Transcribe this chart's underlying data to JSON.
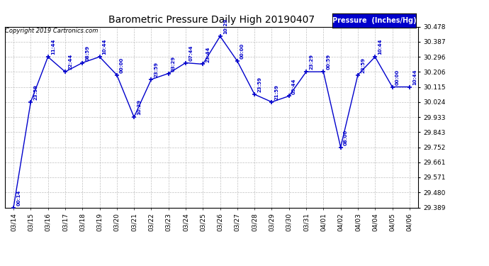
{
  "title": "Barometric Pressure Daily High 20190407",
  "copyright": "Copyright 2019 Cartronics.com",
  "legend_label": "Pressure  (Inches/Hg)",
  "line_color": "#0000cc",
  "background_color": "#ffffff",
  "grid_color": "#b0b0b0",
  "x_labels": [
    "03/14",
    "03/15",
    "03/16",
    "03/17",
    "03/18",
    "03/19",
    "03/20",
    "03/21",
    "03/22",
    "03/23",
    "03/24",
    "03/25",
    "03/26",
    "03/27",
    "03/28",
    "03/29",
    "03/30",
    "03/31",
    "04/01",
    "04/02",
    "04/03",
    "04/04",
    "04/05",
    "04/06"
  ],
  "data_points": [
    {
      "date": "03/14",
      "time": "00:14",
      "value": 29.389
    },
    {
      "date": "03/15",
      "time": "23:59",
      "value": 30.024
    },
    {
      "date": "03/16",
      "time": "11:44",
      "value": 30.296
    },
    {
      "date": "03/17",
      "time": "22:44",
      "value": 30.206
    },
    {
      "date": "03/18",
      "time": "08:59",
      "value": 30.26
    },
    {
      "date": "03/19",
      "time": "10:44",
      "value": 30.296
    },
    {
      "date": "03/20",
      "time": "00:00",
      "value": 30.187
    },
    {
      "date": "03/21",
      "time": "10:29",
      "value": 29.933
    },
    {
      "date": "03/22",
      "time": "23:59",
      "value": 30.16
    },
    {
      "date": "03/23",
      "time": "03:29",
      "value": 30.196
    },
    {
      "date": "03/24",
      "time": "07:44",
      "value": 30.26
    },
    {
      "date": "03/25",
      "time": "23:44",
      "value": 30.252
    },
    {
      "date": "03/26",
      "time": "10:29",
      "value": 30.42
    },
    {
      "date": "03/27",
      "time": "00:00",
      "value": 30.27
    },
    {
      "date": "03/28",
      "time": "23:59",
      "value": 30.07
    },
    {
      "date": "03/29",
      "time": "21:59",
      "value": 30.024
    },
    {
      "date": "03/30",
      "time": "09:44",
      "value": 30.06
    },
    {
      "date": "03/31",
      "time": "23:29",
      "value": 30.206
    },
    {
      "date": "04/01",
      "time": "00:59",
      "value": 30.206
    },
    {
      "date": "04/02",
      "time": "08:00",
      "value": 29.752
    },
    {
      "date": "04/03",
      "time": "23:59",
      "value": 30.187
    },
    {
      "date": "04/04",
      "time": "10:44",
      "value": 30.296
    },
    {
      "date": "04/05",
      "time": "00:00",
      "value": 30.115
    },
    {
      "date": "04/06",
      "time": "10:44",
      "value": 30.115
    }
  ],
  "ylim_min": 29.389,
  "ylim_max": 30.478,
  "yticks": [
    29.389,
    29.48,
    29.571,
    29.661,
    29.752,
    29.843,
    29.933,
    30.024,
    30.115,
    30.206,
    30.296,
    30.387,
    30.478
  ],
  "figwidth": 6.9,
  "figheight": 3.75,
  "dpi": 100
}
